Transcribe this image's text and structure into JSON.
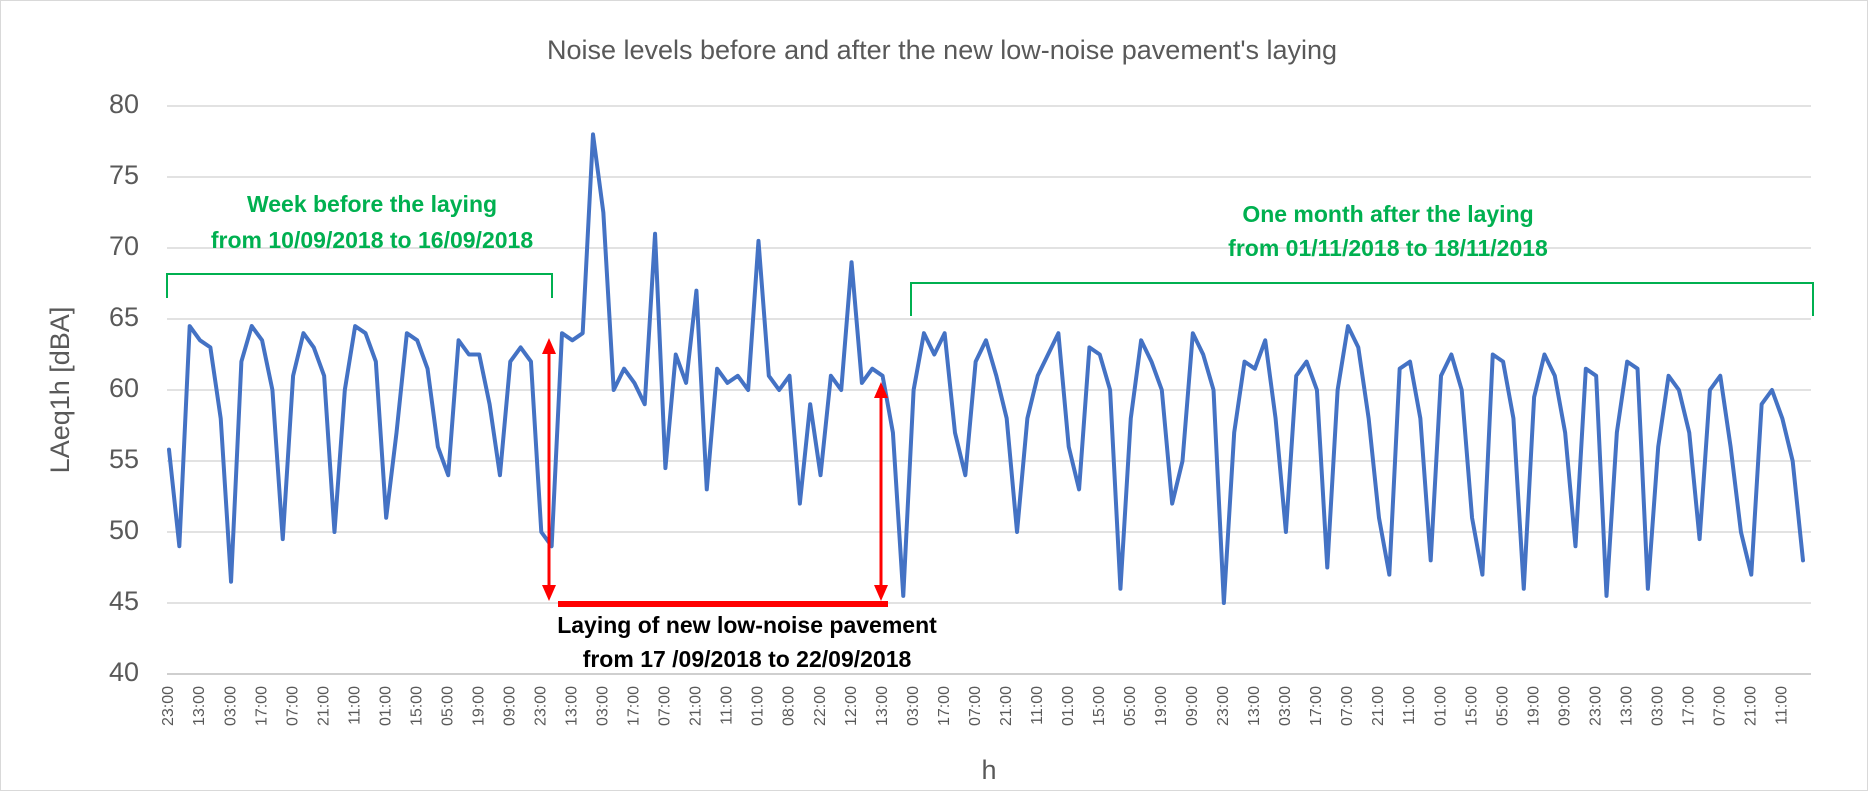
{
  "chart_data": {
    "type": "line",
    "title": "Noise levels before and after the new low-noise pavement's laying",
    "x_label": "h",
    "y_label": "LAeq1h [dBA]",
    "categories": [
      "23:00",
      null,
      null,
      "13:00",
      null,
      null,
      "03:00",
      null,
      null,
      "17:00",
      null,
      null,
      "07:00",
      null,
      null,
      "21:00",
      null,
      null,
      "11:00",
      null,
      null,
      "01:00",
      null,
      null,
      "15:00",
      null,
      null,
      "05:00",
      null,
      null,
      "19:00",
      null,
      null,
      "09:00",
      null,
      null,
      "23:00",
      null,
      null,
      "13:00",
      null,
      null,
      "03:00",
      null,
      null,
      "17:00",
      null,
      null,
      "07:00",
      null,
      null,
      "21:00",
      null,
      null,
      "11:00",
      null,
      null,
      "01:00",
      null,
      null,
      "08:00",
      null,
      null,
      "22:00",
      null,
      null,
      "12:00",
      null,
      null,
      "13:00",
      null,
      null,
      "03:00",
      null,
      null,
      "17:00",
      null,
      null,
      "07:00",
      null,
      null,
      "21:00",
      null,
      null,
      "11:00",
      null,
      null,
      "01:00",
      null,
      null,
      "15:00",
      null,
      null,
      "05:00",
      null,
      null,
      "19:00",
      null,
      null,
      "09:00",
      null,
      null,
      "23:00",
      null,
      null,
      "13:00",
      null,
      null,
      "03:00",
      null,
      null,
      "17:00",
      null,
      null,
      "07:00",
      null,
      null,
      "21:00",
      null,
      null,
      "11:00",
      null,
      null,
      "01:00",
      null,
      null,
      "15:00",
      null,
      null,
      "05:00",
      null,
      null,
      "19:00",
      null,
      null,
      "09:00",
      null,
      null,
      "23:00",
      null,
      null,
      "13:00",
      null,
      null,
      "03:00",
      null,
      null,
      "17:00",
      null,
      null,
      "07:00",
      null,
      null,
      "21:00",
      null,
      null,
      "11:00",
      null,
      null
    ],
    "values": [
      55.8,
      49,
      64.5,
      63.5,
      63,
      58,
      46.5,
      62,
      64.5,
      63.5,
      60,
      49.5,
      61,
      64,
      63,
      61,
      50,
      60,
      64.5,
      64,
      62,
      51,
      57,
      64,
      63.5,
      61.5,
      56,
      54,
      63.5,
      62.5,
      62.5,
      59,
      54,
      62,
      63,
      62,
      50,
      49,
      64,
      63.5,
      64,
      78,
      72.5,
      60,
      61.5,
      60.5,
      59,
      71,
      54.5,
      62.5,
      60.5,
      67,
      53,
      61.5,
      60.5,
      61,
      60,
      70.5,
      61,
      60,
      61,
      52,
      59,
      54,
      61,
      60,
      69,
      60.5,
      61.5,
      61,
      57,
      45.5,
      60,
      64,
      62.5,
      64,
      57,
      54,
      62,
      63.5,
      61,
      58,
      50,
      58,
      61,
      62.5,
      64,
      56,
      53,
      63,
      62.5,
      60,
      46,
      58,
      63.5,
      62,
      60,
      52,
      55,
      64,
      62.5,
      60,
      45,
      57,
      62,
      61.5,
      63.5,
      58,
      50,
      61,
      62,
      60,
      47.5,
      60,
      64.5,
      63,
      58,
      51,
      47,
      61.5,
      62,
      58,
      48,
      61,
      62.5,
      60,
      51,
      47,
      62.5,
      62,
      58,
      46,
      59.5,
      62.5,
      61,
      57,
      49,
      61.5,
      61,
      45.5,
      57,
      62,
      61.5,
      46,
      56,
      61,
      60,
      57,
      49.5,
      60,
      61,
      56,
      50,
      47,
      59,
      60,
      58,
      55,
      48
    ],
    "color": "#4472c4",
    "ylim": [
      40,
      80
    ],
    "yticks": [
      40,
      45,
      50,
      55,
      60,
      65,
      70,
      75,
      80
    ],
    "grid": true,
    "annotations": [
      "Week before the laying",
      "from 10/09/2018 to 16/09/2018",
      "One month after the laying",
      "from 01/11/2018 to 18/11/2018",
      "Laying of new low-noise pavement",
      "from 17 /09/2018 to 22/09/2018"
    ]
  }
}
